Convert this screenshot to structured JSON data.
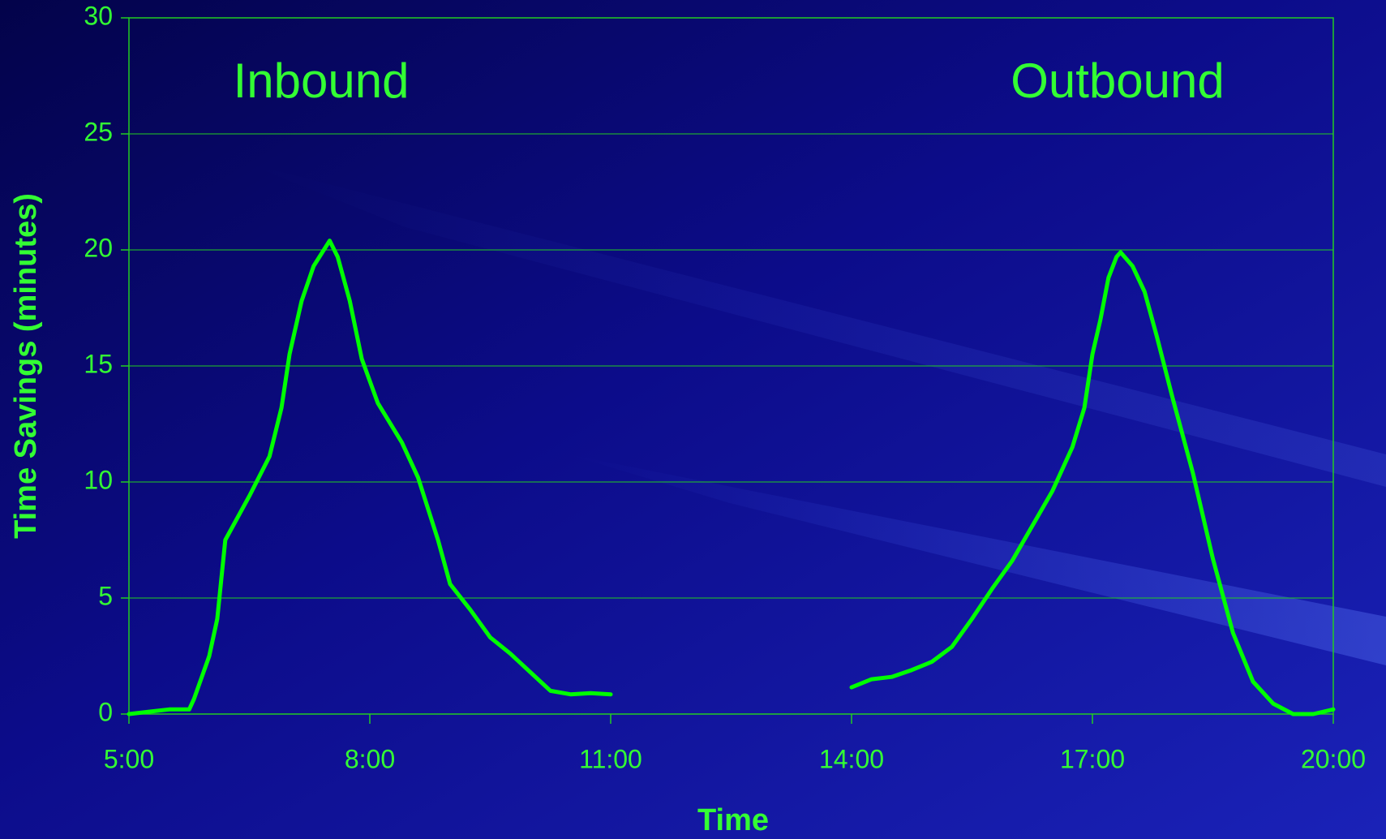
{
  "chart_data": {
    "type": "line",
    "xlabel": "Time",
    "ylabel": "Time Savings (minutes)",
    "annotations": [
      "Inbound",
      "Outbound"
    ],
    "color": "#00ff00",
    "x": [
      5.0,
      5.25,
      5.5,
      5.75,
      5.81,
      6.0,
      6.1,
      6.2,
      6.5,
      6.75,
      6.9,
      7.0,
      7.15,
      7.3,
      7.5,
      7.6,
      7.75,
      7.9,
      8.1,
      8.4,
      8.6,
      8.85,
      9.0,
      9.25,
      9.5,
      9.75,
      10.0,
      10.25,
      10.5,
      10.75,
      11.0,
      12.5,
      14.0,
      14.25,
      14.5,
      14.75,
      15.0,
      15.25,
      15.5,
      15.75,
      16.0,
      16.25,
      16.5,
      16.75,
      16.9,
      17.0,
      17.1,
      17.2,
      17.3,
      17.35,
      17.5,
      17.65,
      17.8,
      18.0,
      18.25,
      18.5,
      18.75,
      19.0,
      19.25,
      19.5,
      19.75,
      20.0
    ],
    "values": [
      0,
      0.1,
      0.2,
      0.2,
      0.65,
      2.5,
      4.1,
      7.5,
      9.4,
      11.1,
      13.2,
      15.5,
      17.8,
      19.3,
      20.4,
      19.7,
      17.8,
      15.3,
      13.4,
      11.7,
      10.2,
      7.5,
      5.6,
      4.5,
      3.3,
      2.6,
      1.8,
      1.0,
      0.85,
      0.9,
      0.85,
      null,
      1.15,
      1.5,
      1.6,
      1.9,
      2.25,
      2.9,
      4.1,
      5.4,
      6.6,
      8.1,
      9.6,
      11.5,
      13.2,
      15.5,
      17.0,
      18.8,
      19.7,
      19.9,
      19.3,
      18.2,
      16.3,
      13.6,
      10.4,
      6.7,
      3.5,
      1.4,
      0.45,
      0,
      0,
      0.2
    ],
    "xlim": [
      5,
      20
    ],
    "xticks": [
      {
        "value": 5,
        "label": "5:00"
      },
      {
        "value": 8,
        "label": "8:00"
      },
      {
        "value": 11,
        "label": "11:00"
      },
      {
        "value": 14,
        "label": "14:00"
      },
      {
        "value": 17,
        "label": "17:00"
      },
      {
        "value": 20,
        "label": "20:00"
      }
    ],
    "ylim": [
      0,
      30
    ],
    "yticks": [
      0,
      5,
      10,
      15,
      20,
      25,
      30
    ],
    "grid": true
  }
}
